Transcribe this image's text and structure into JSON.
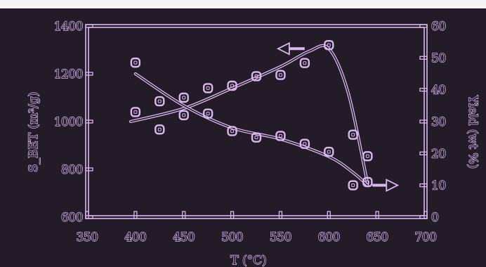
{
  "chart_data": {
    "type": "scatter",
    "title": "",
    "xlabel": "T (°C)",
    "ylabel_left": "S_BET (m²/g)",
    "ylabel_right": "Yield (wt %)",
    "xlim": [
      350,
      700
    ],
    "ylim_left": [
      600,
      1400
    ],
    "ylim_right": [
      0,
      60
    ],
    "xticks": [
      "350",
      "400",
      "450",
      "500",
      "550",
      "600",
      "650",
      "700"
    ],
    "yticks_left": [
      "600",
      "800",
      "1000",
      "1200",
      "1400"
    ],
    "yticks_right": [
      "0",
      "10",
      "20",
      "30",
      "40",
      "50",
      "60"
    ],
    "grid": false,
    "colors": {
      "background": "#231c28",
      "line": "#d9b8f0"
    },
    "series": [
      {
        "axis": "left",
        "x": [
          400,
          425,
          450,
          475,
          500,
          525,
          550,
          575,
          600,
          625,
          640
        ],
        "y": [
          1040,
          1085,
          1100,
          1140,
          1150,
          1190,
          1195,
          1245,
          1320,
          945,
          855
        ],
        "fit_x": [
          395,
          450,
          500,
          550,
          580,
          600,
          620,
          640
        ],
        "fit_y": [
          1000,
          1055,
          1140,
          1230,
          1295,
          1305,
          1120,
          740
        ],
        "arrow": "left"
      },
      {
        "axis": "right",
        "x": [
          400,
          425,
          450,
          475,
          500,
          525,
          550,
          575,
          600,
          625,
          640
        ],
        "y": [
          48.5,
          27.5,
          32,
          32.5,
          27,
          25,
          25.5,
          23,
          20.5,
          10,
          11
        ],
        "fit_x": [
          400,
          450,
          500,
          550,
          600,
          625,
          640
        ],
        "fit_y": [
          45,
          35,
          28,
          24.5,
          19,
          14,
          10
        ],
        "arrow": "right"
      }
    ]
  }
}
